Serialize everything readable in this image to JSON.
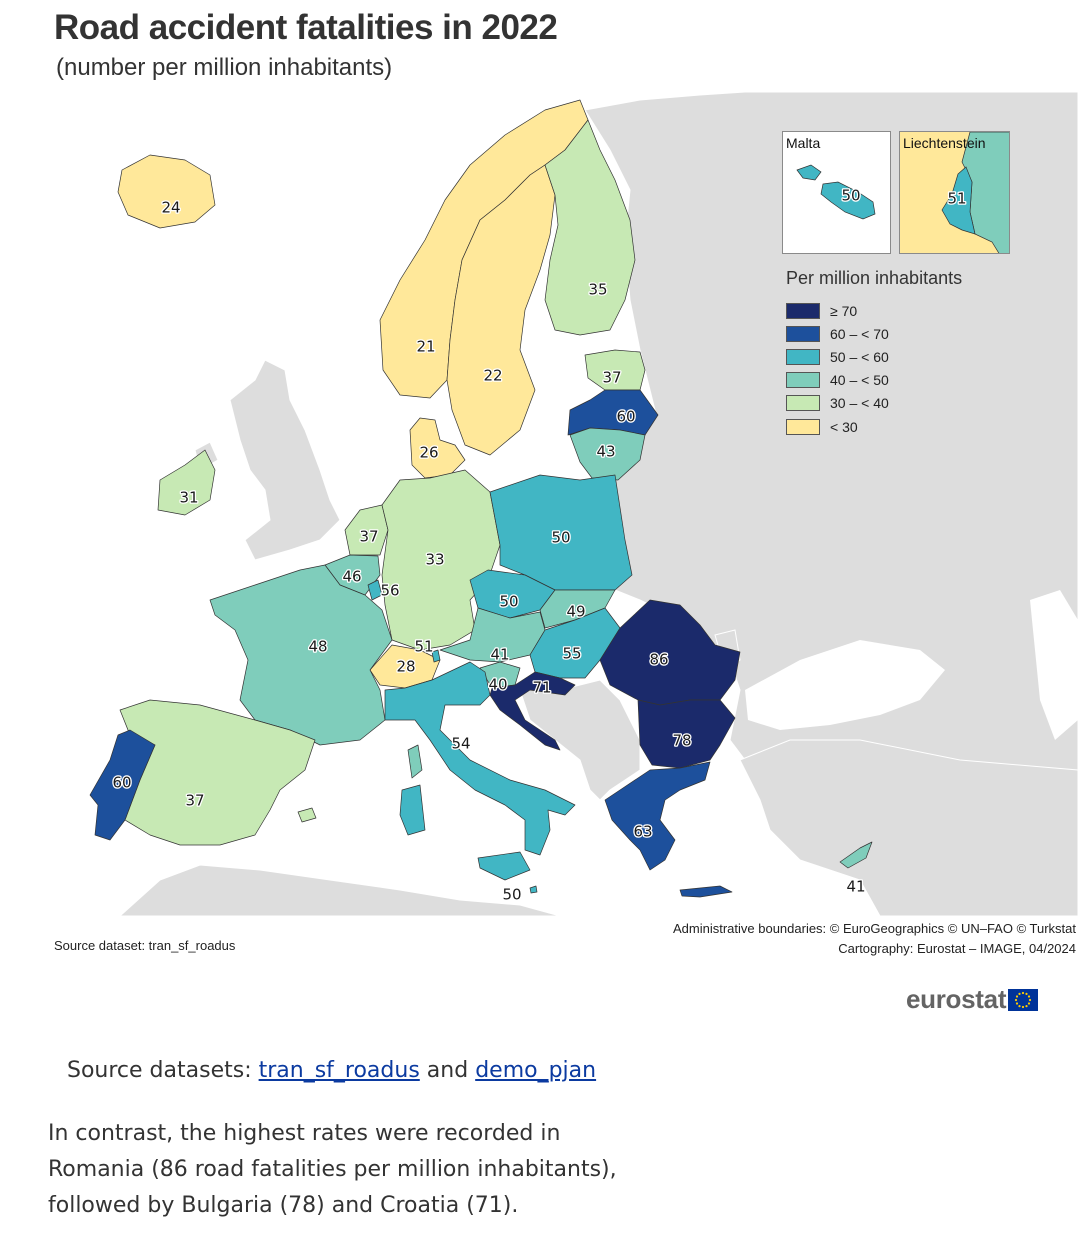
{
  "header": {
    "title": "Road accident fatalities in 2022",
    "subtitle": "(number per million inhabitants)"
  },
  "legend": {
    "title": "Per million inhabitants",
    "classes": [
      {
        "label": "≥ 70",
        "color": "#1b2a6b"
      },
      {
        "label": "60 – < 70",
        "color": "#1d509c"
      },
      {
        "label": "50 – < 60",
        "color": "#41b6c4"
      },
      {
        "label": "40 – < 50",
        "color": "#7fcdbb"
      },
      {
        "label": "30 – < 40",
        "color": "#c7e9b4"
      },
      {
        "label": "< 30",
        "color": "#ffe89a"
      }
    ],
    "no_data_color": "#dddddd",
    "sea_color": "#ffffff"
  },
  "insets": [
    {
      "name": "Malta",
      "value": "50"
    },
    {
      "name": "Liechtenstein",
      "value": "51"
    }
  ],
  "map_values": {
    "iceland": "24",
    "norway": "21",
    "sweden": "22",
    "finland": "35",
    "estonia": "37",
    "latvia": "60",
    "lithuania": "43",
    "denmark": "26",
    "ireland": "31",
    "netherlands": "37",
    "belgium": "46",
    "luxembourg": "56",
    "germany": "33",
    "poland": "50",
    "czechia": "50",
    "slovakia": "49",
    "austria": "41",
    "hungary": "55",
    "romania": "86",
    "slovenia": "40",
    "croatia": "71",
    "switzerland": "28",
    "liechtenstein": "51",
    "france": "48",
    "italy": "54",
    "malta": "50",
    "spain": "37",
    "portugal": "60",
    "bulgaria": "78",
    "greece": "63",
    "cyprus": "41"
  },
  "credits": {
    "boundaries": "Administrative boundaries: © EuroGeographics © UN–FAO © Turkstat",
    "cartography": "Cartography: Eurostat – IMAGE, 04/2024"
  },
  "source_dataset": "Source dataset: tran_sf_roadus",
  "logo": "eurostat",
  "sources_line": {
    "prefix": "Source datasets:",
    "link1": "tran_sf_roadus",
    "conj": "and",
    "link2": "demo_pjan"
  },
  "paragraph": "In contrast, the highest rates were recorded in Romania (86 road fatalities per million inhabitants), followed by Bulgaria (78) and Croatia (71)."
}
